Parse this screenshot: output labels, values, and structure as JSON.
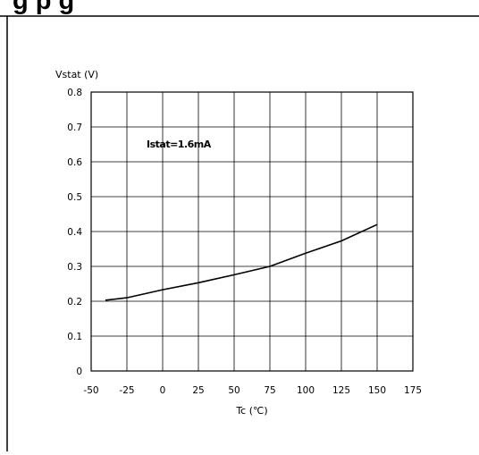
{
  "header_text": "g                                    p         g",
  "chart_data": {
    "type": "line",
    "title": "",
    "xlabel": "Tc (℃)",
    "ylabel": "Vstat (V)",
    "xlim": [
      -50,
      175
    ],
    "ylim": [
      0,
      0.8
    ],
    "x_ticks": [
      "-50",
      "-25",
      "0",
      "25",
      "50",
      "75",
      "100",
      "125",
      "150",
      "175"
    ],
    "y_ticks": [
      "0",
      "0.1",
      "0.2",
      "0.3",
      "0.4",
      "0.5",
      "0.6",
      "0.7",
      "0.8"
    ],
    "grid": true,
    "annotation": "Istat=1.6mA",
    "series": [
      {
        "x": [
          -40,
          -25,
          0,
          25,
          50,
          75,
          100,
          125,
          150
        ],
        "y": [
          0.203,
          0.21,
          0.233,
          0.253,
          0.276,
          0.3,
          0.338,
          0.373,
          0.42
        ]
      }
    ]
  },
  "colors": {
    "line": "#000000",
    "grid": "#000000",
    "frame": "#000000"
  }
}
